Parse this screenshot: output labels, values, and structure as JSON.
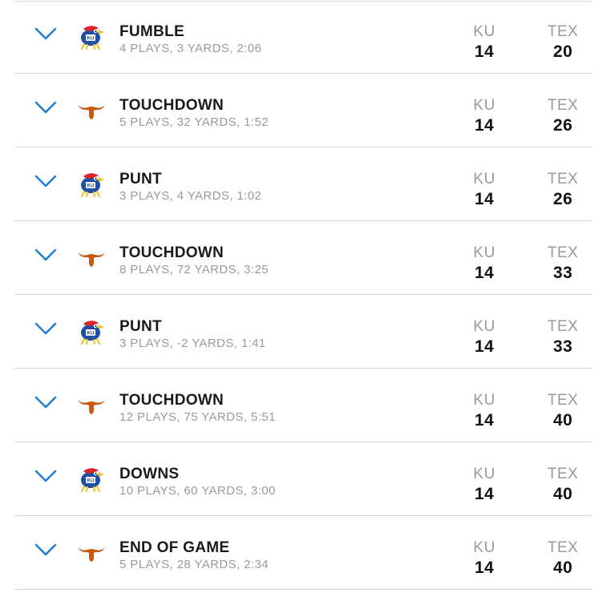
{
  "colors": {
    "chevron": "#1a7bd8",
    "ku_blue": "#1b4fa8",
    "ku_red": "#d8262e",
    "ku_yellow": "#f2c21b",
    "tex_orange": "#c75b12"
  },
  "icons": {
    "chevron": "chevron-down-icon",
    "ku": "jayhawk-logo-icon",
    "tex": "longhorn-logo-icon"
  },
  "teams": {
    "home_abbr": "KU",
    "away_abbr": "TEX"
  },
  "drives": [
    {
      "team": "ku",
      "result": "FUMBLE",
      "summary": "4 PLAYS, 3 YARDS, 2:06",
      "home_score": "14",
      "away_score": "20"
    },
    {
      "team": "tex",
      "result": "TOUCHDOWN",
      "summary": "5 PLAYS, 32 YARDS, 1:52",
      "home_score": "14",
      "away_score": "26"
    },
    {
      "team": "ku",
      "result": "PUNT",
      "summary": "3 PLAYS, 4 YARDS, 1:02",
      "home_score": "14",
      "away_score": "26"
    },
    {
      "team": "tex",
      "result": "TOUCHDOWN",
      "summary": "8 PLAYS, 72 YARDS, 3:25",
      "home_score": "14",
      "away_score": "33"
    },
    {
      "team": "ku",
      "result": "PUNT",
      "summary": "3 PLAYS, -2 YARDS, 1:41",
      "home_score": "14",
      "away_score": "33"
    },
    {
      "team": "tex",
      "result": "TOUCHDOWN",
      "summary": "12 PLAYS, 75 YARDS, 5:51",
      "home_score": "14",
      "away_score": "40"
    },
    {
      "team": "ku",
      "result": "DOWNS",
      "summary": "10 PLAYS, 60 YARDS, 3:00",
      "home_score": "14",
      "away_score": "40"
    },
    {
      "team": "tex",
      "result": "END OF GAME",
      "summary": "5 PLAYS, 28 YARDS, 2:34",
      "home_score": "14",
      "away_score": "40"
    }
  ]
}
